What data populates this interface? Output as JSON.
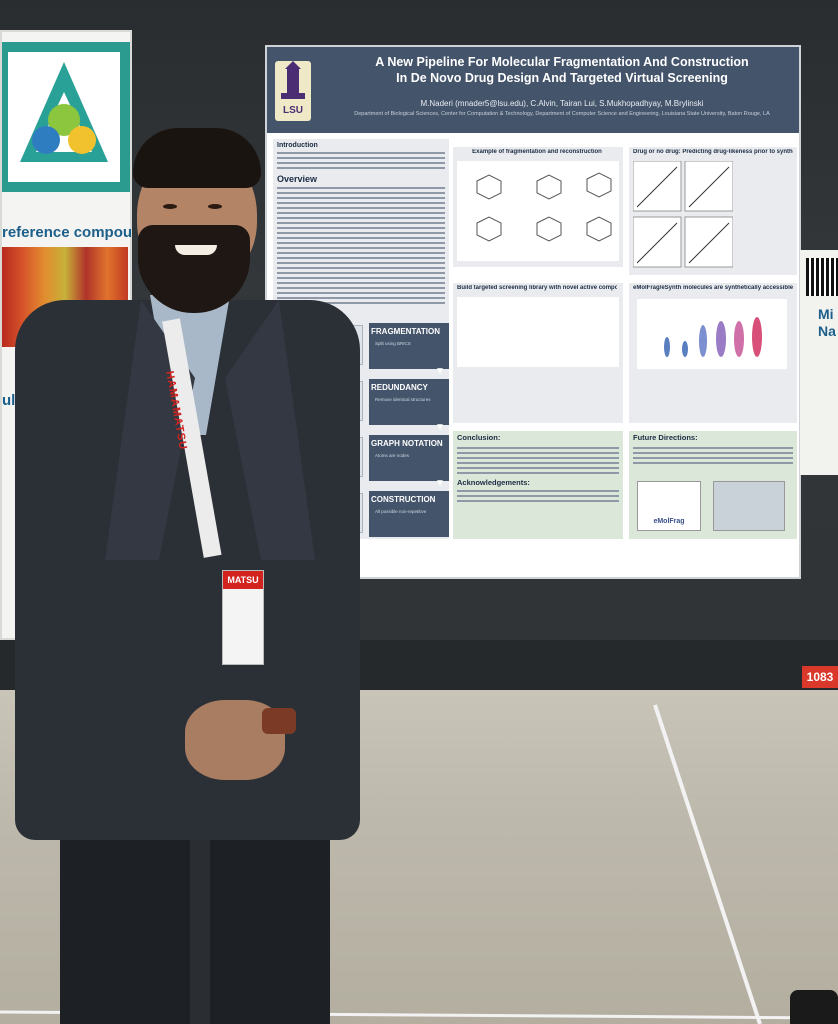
{
  "left_poster": {
    "heading": "reference compounds",
    "side_text": "ults"
  },
  "poster": {
    "title_line1": "A New Pipeline For Molecular Fragmentation And Construction",
    "title_line2": "In De Novo Drug Design And Targeted Virtual Screening",
    "authors": "M.Naderi (mnader5@lsu.edu), C.Alvin, Tairan Lui, S.Mukhopadhyay, M.Brylinski",
    "affiliation": "Department of Biological Sciences, Center for Computation & Technology, Department of Computer Science and Engineering, Louisiana State University, Baton Rouge, LA",
    "logo_text": "LSU",
    "sections": {
      "introduction": "Introduction",
      "overview": "Overview",
      "example_title": "Example of fragmentation and reconstruction",
      "drug_title": "Drug or no drug: Predicting drug-likeness prior to synthesis",
      "library_title": "Build targeted screening library with novel active compounds",
      "synth_title": "eMolFrag/eSynth molecules are synthetically accessible",
      "conclusion": "Conclusion:",
      "future": "Future Directions:",
      "ack": "Acknowledgements:"
    },
    "bands": [
      {
        "label": "FRAGMENTATION",
        "sub": "Split using BRICS"
      },
      {
        "label": "REDUNDANCY",
        "sub": "Remove identical structures"
      },
      {
        "label": "GRAPH NOTATION",
        "sub": "Atoms are nodes"
      },
      {
        "label": "CONSTRUCTION",
        "sub": "All possible non-repetitive"
      }
    ],
    "future_logo": "eMolFrag"
  },
  "person": {
    "lanyard_text": "HAMAMATSU",
    "badge_top": "MATSU"
  },
  "right_edge": {
    "text_line1": "Mi",
    "text_line2": "Na"
  },
  "booth_number": "1083",
  "colors": {
    "poster_header": "#44546b",
    "conclusion_panel": "#dbe7d8",
    "lanyard_red": "#d3231f",
    "jacket": "#2b2f36"
  }
}
